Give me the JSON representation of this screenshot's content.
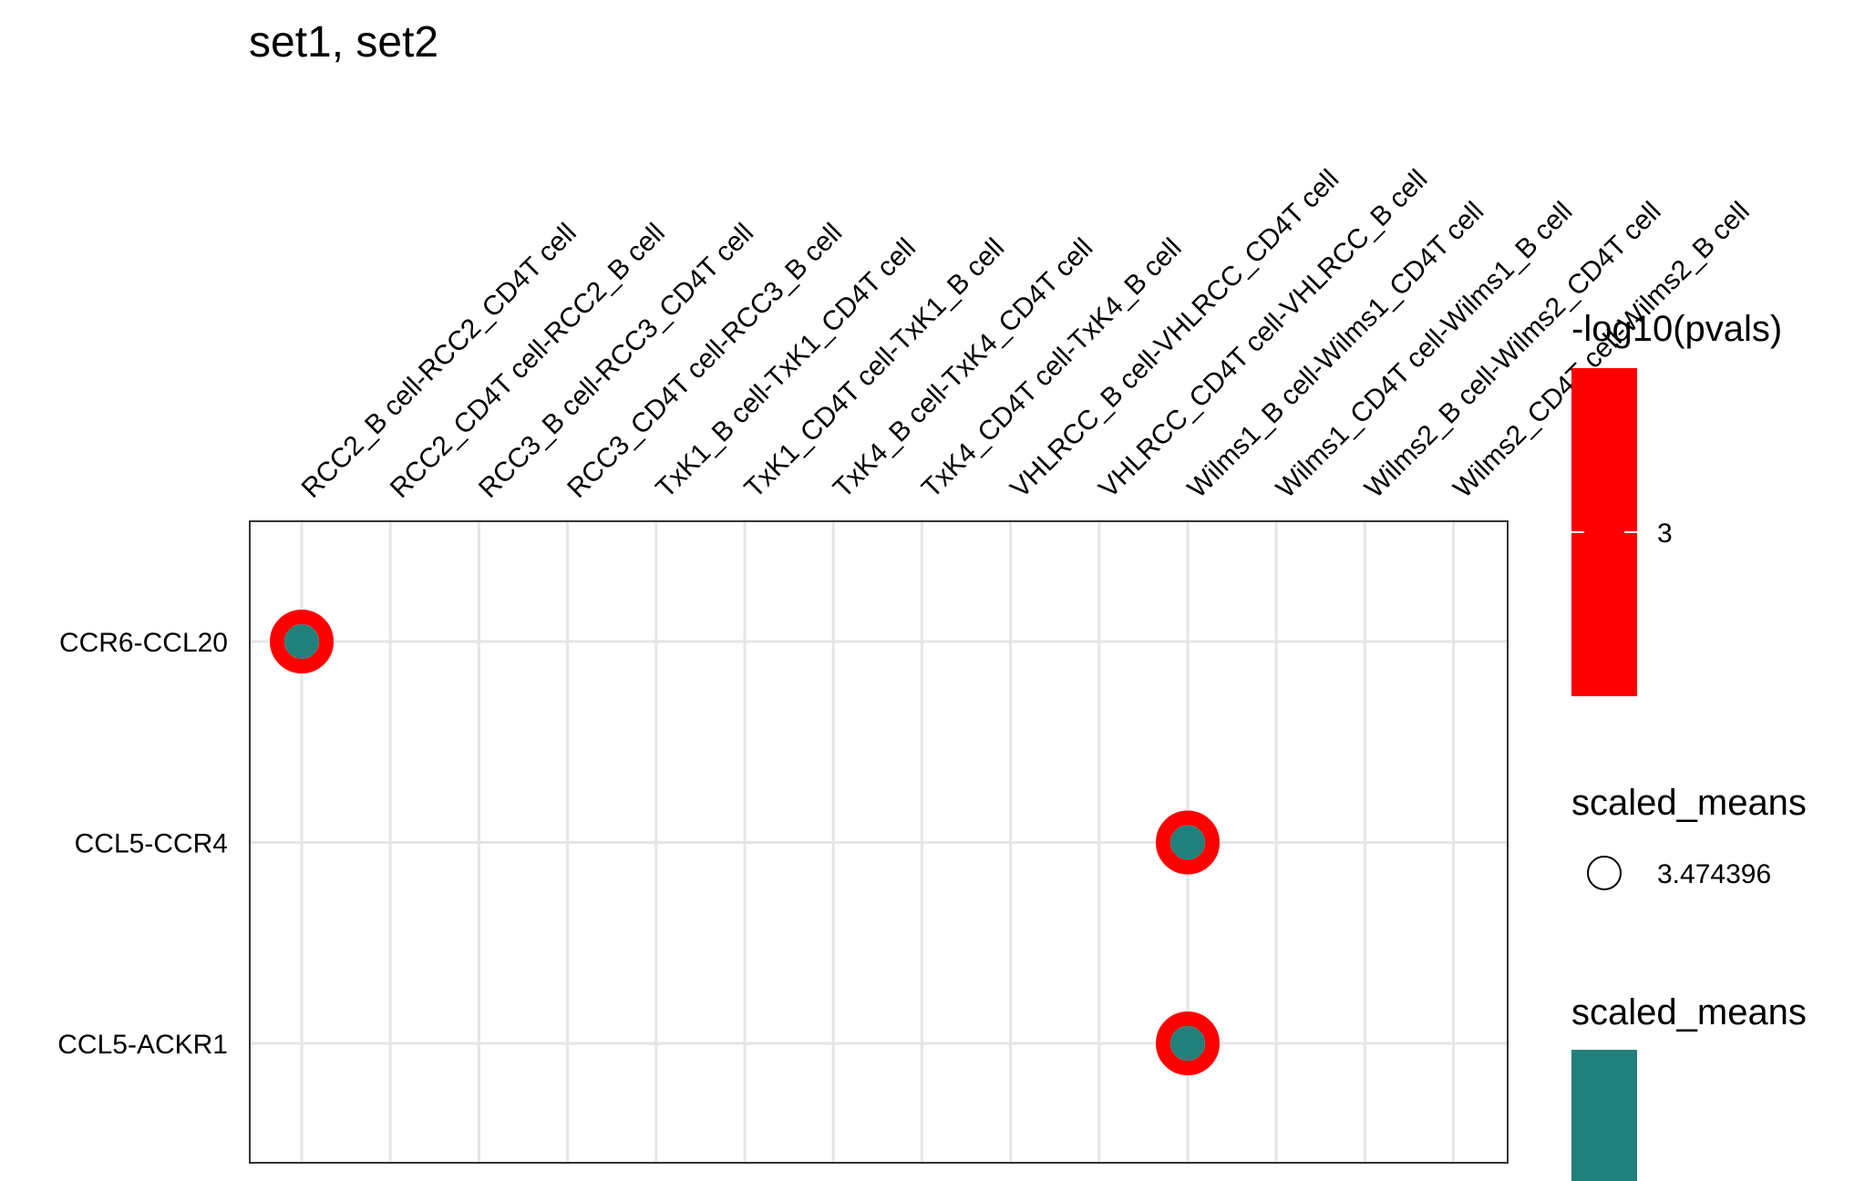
{
  "chart_data": {
    "type": "scatter",
    "title": "set1, set2",
    "xlabel": "",
    "ylabel": "",
    "grid": true,
    "x_categories": [
      "RCC2_B cell-RCC2_CD4T cell",
      "RCC2_CD4T cell-RCC2_B cell",
      "RCC3_B cell-RCC3_CD4T cell",
      "RCC3_CD4T cell-RCC3_B cell",
      "TxK1_B cell-TxK1_CD4T cell",
      "TxK1_CD4T cell-TxK1_B cell",
      "TxK4_B cell-TxK4_CD4T cell",
      "TxK4_CD4T cell-TxK4_B cell",
      "VHLRCC_B cell-VHLRCC_CD4T cell",
      "VHLRCC_CD4T cell-VHLRCC_B cell",
      "Wilms1_B cell-Wilms1_CD4T cell",
      "Wilms1_CD4T cell-Wilms1_B cell",
      "Wilms2_B cell-Wilms2_CD4T cell",
      "Wilms2_CD4T cell-Wilms2_B cell"
    ],
    "y_categories": [
      "CCR6-CCL20",
      "CCL5-CCR4",
      "CCL5-ACKR1"
    ],
    "points": [
      {
        "x": "RCC2_B cell-RCC2_CD4T cell",
        "y": "CCR6-CCL20",
        "scaled_means": 3.474396,
        "neg_log10_pvals": 3
      },
      {
        "x": "Wilms1_B cell-Wilms1_CD4T cell",
        "y": "CCL5-CCR4",
        "scaled_means": 3.474396,
        "neg_log10_pvals": 3
      },
      {
        "x": "Wilms1_B cell-Wilms1_CD4T cell",
        "y": "CCL5-ACKR1",
        "scaled_means": 3.474396,
        "neg_log10_pvals": 3
      }
    ],
    "legends": [
      {
        "title": "-log10(pvals)",
        "kind": "colorbar",
        "labels": [
          "3"
        ],
        "color": "#ff0000"
      },
      {
        "title": "scaled_means",
        "kind": "size",
        "labels": [
          "3.474396"
        ]
      },
      {
        "title": "scaled_means",
        "kind": "colorbar",
        "labels": [],
        "color": "#21807a"
      }
    ],
    "colors": {
      "pval_ring": "#ff0000",
      "mean_fill": "#21807a",
      "grid": "#e5e5e5",
      "border": "#333333"
    }
  }
}
